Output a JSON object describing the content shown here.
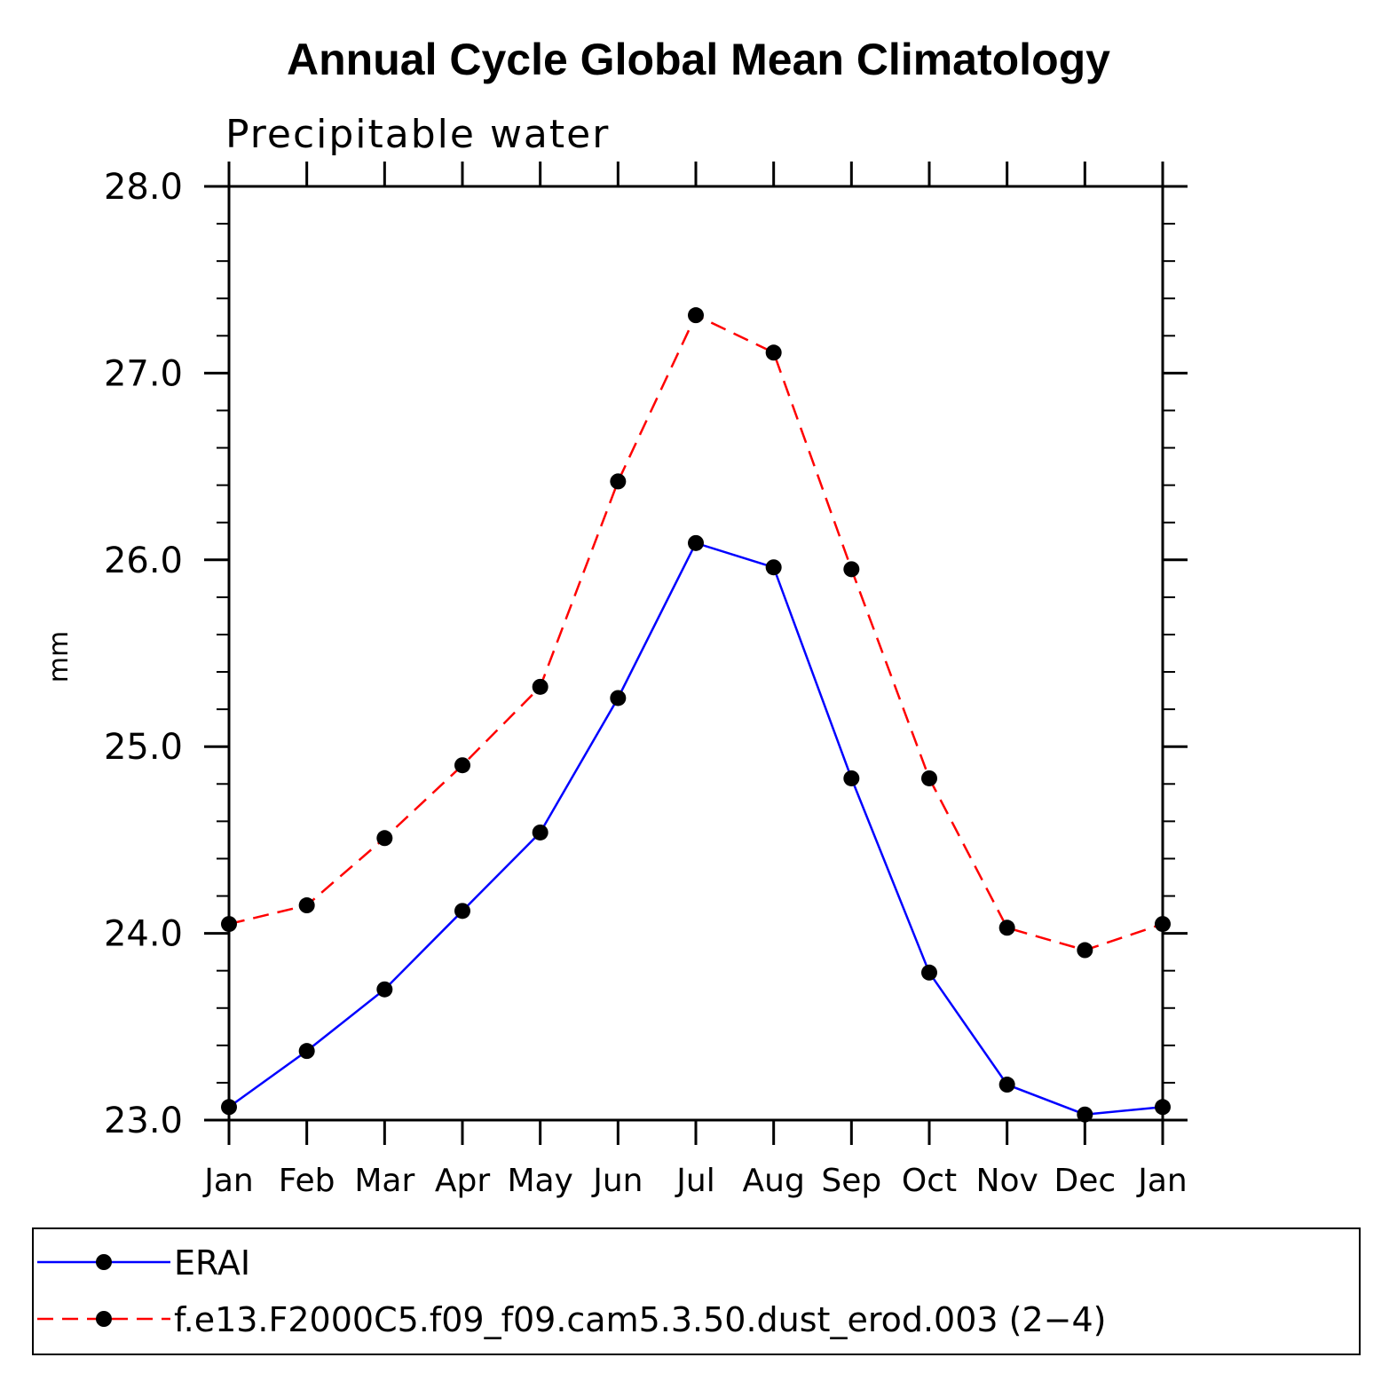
{
  "colors": {
    "erai": "#0000ff",
    "model": "#ff0000",
    "axis": "#000000",
    "marker": "#000000"
  },
  "chart_data": {
    "type": "line",
    "title": "Annual Cycle Global Mean Climatology",
    "subtitle": "Precipitable water",
    "xlabel": "",
    "ylabel": "mm",
    "categories": [
      "Jan",
      "Feb",
      "Mar",
      "Apr",
      "May",
      "Jun",
      "Jul",
      "Aug",
      "Sep",
      "Oct",
      "Nov",
      "Dec",
      "Jan"
    ],
    "ylim": [
      23.0,
      28.0
    ],
    "yticks": [
      "23.0",
      "24.0",
      "25.0",
      "26.0",
      "27.0",
      "28.0"
    ],
    "grid": false,
    "legend_position": "bottom",
    "series": [
      {
        "name": "ERAI",
        "style": "solid",
        "color": "#0000ff",
        "values": [
          23.07,
          23.37,
          23.7,
          24.12,
          24.54,
          25.26,
          26.09,
          25.96,
          24.83,
          23.79,
          23.19,
          23.03,
          23.07
        ]
      },
      {
        "name": "f.e13.F2000C5.f09_f09.cam5.3.50.dust_erod.003 (2−4)",
        "style": "dashed",
        "color": "#ff0000",
        "values": [
          24.05,
          24.15,
          24.51,
          24.9,
          25.32,
          26.42,
          27.31,
          27.11,
          25.95,
          24.83,
          24.03,
          23.91,
          24.05
        ]
      }
    ]
  }
}
